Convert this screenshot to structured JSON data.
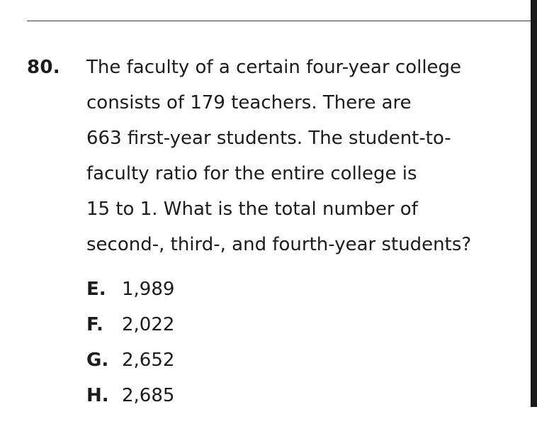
{
  "question": {
    "number": "80.",
    "lines": [
      "The faculty of a certain four-year college",
      "consists of 179 teachers. There are",
      "663 first-year students. The student-to-",
      "faculty ratio for the entire college is",
      "15 to 1. What is the total number of",
      "second-, third-, and fourth-year students?"
    ],
    "choices": [
      {
        "letter": "E.",
        "value": "1,989"
      },
      {
        "letter": "F.",
        "value": "2,022"
      },
      {
        "letter": "G.",
        "value": "2,652"
      },
      {
        "letter": "H.",
        "value": "2,685"
      }
    ]
  }
}
